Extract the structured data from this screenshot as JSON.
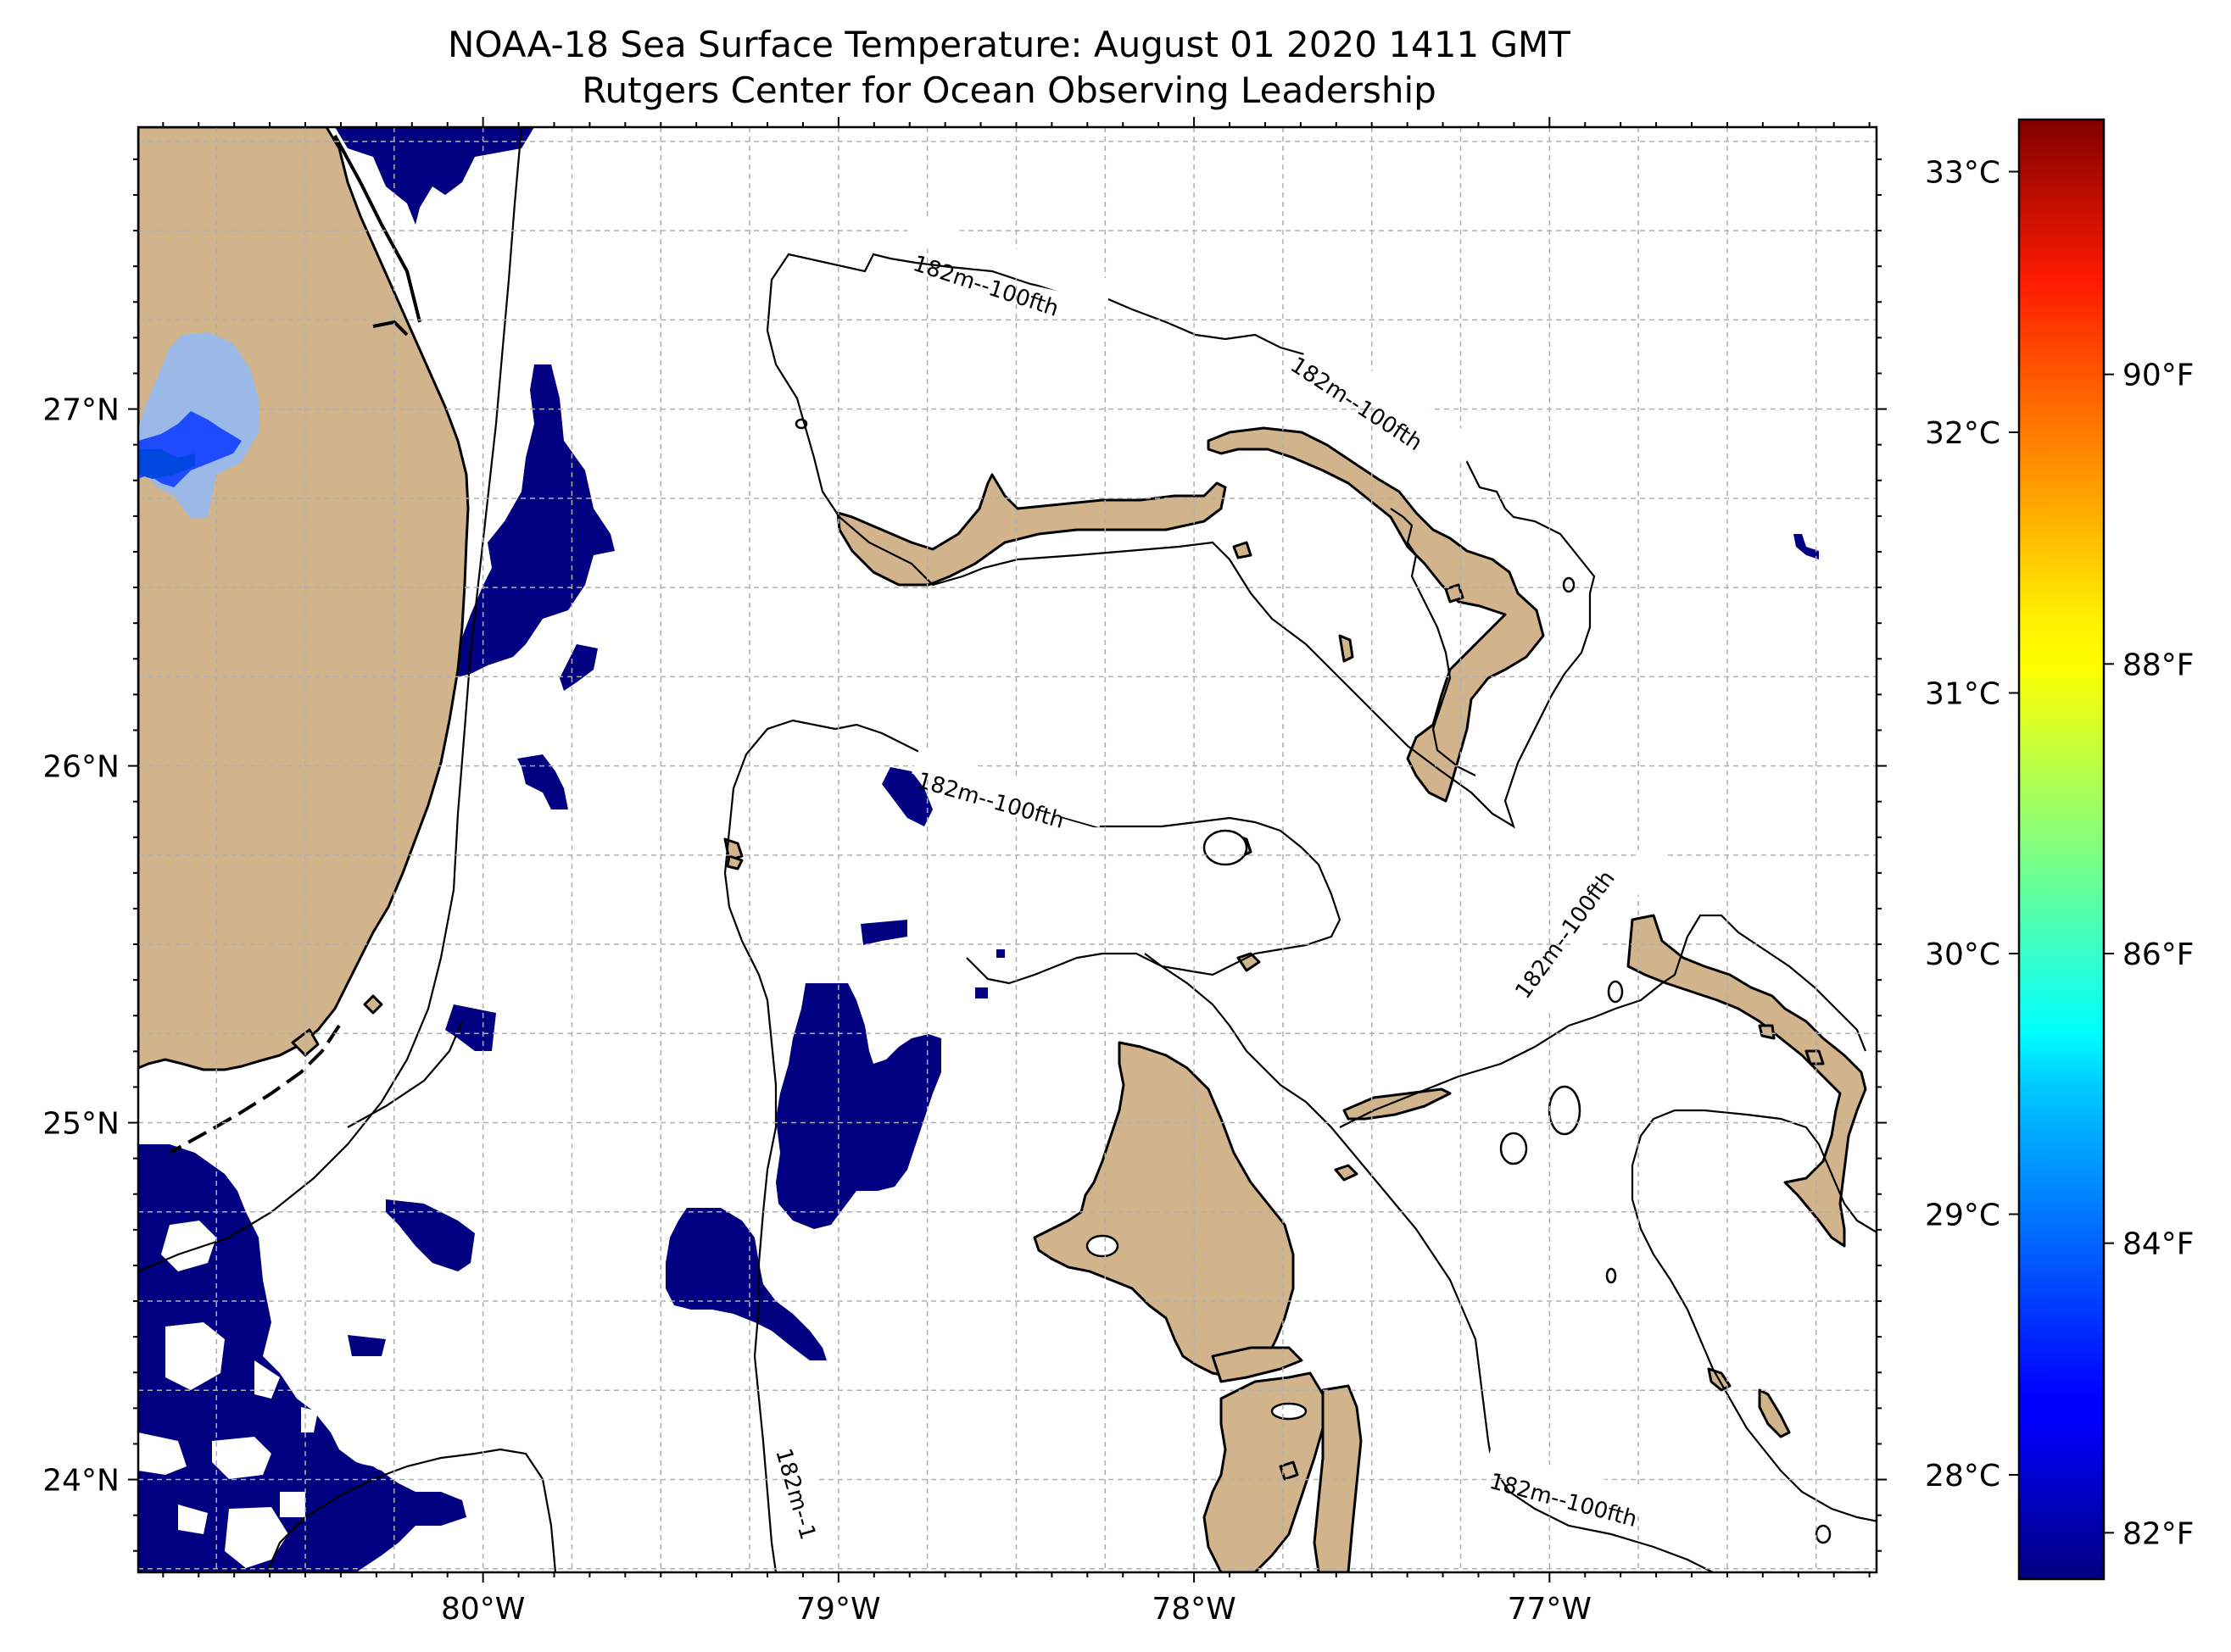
{
  "title": {
    "line1": "NOAA-18 Sea Surface Temperature: August 01 2020 1411 GMT",
    "line2": "Rutgers Center for Ocean Observing Leadership"
  },
  "map": {
    "lon_range": [
      -80.97,
      -76.08
    ],
    "lat_range": [
      23.74,
      27.79
    ],
    "lon_ticks": [
      {
        "value": -80,
        "label": "80°W"
      },
      {
        "value": -79,
        "label": "79°W"
      },
      {
        "value": -78,
        "label": "78°W"
      },
      {
        "value": -77,
        "label": "77°W"
      }
    ],
    "lat_ticks": [
      {
        "value": 27,
        "label": "27°N"
      },
      {
        "value": 26,
        "label": "26°N"
      },
      {
        "value": 25,
        "label": "25°N"
      },
      {
        "value": 24,
        "label": "24°N"
      }
    ],
    "gridlines": true,
    "land_color": "#d2b48c",
    "ocean_color": "#ffffff",
    "isobath_labels": [
      "182m--100fth",
      "182m--100fth",
      "182m--100fth",
      "182m--100fth",
      "182m--100fth",
      "182m--1"
    ]
  },
  "colorbar": {
    "colormap": "jet",
    "celsius_ticks": [
      {
        "value": 33,
        "label": "33°C"
      },
      {
        "value": 32,
        "label": "32°C"
      },
      {
        "value": 31,
        "label": "31°C"
      },
      {
        "value": 30,
        "label": "30°C"
      },
      {
        "value": 29,
        "label": "29°C"
      },
      {
        "value": 28,
        "label": "28°C"
      }
    ],
    "fahrenheit_ticks": [
      {
        "value": 90,
        "label": "90°F"
      },
      {
        "value": 88,
        "label": "88°F"
      },
      {
        "value": 86,
        "label": "86°F"
      },
      {
        "value": 84,
        "label": "84°F"
      },
      {
        "value": 82,
        "label": "82°F"
      }
    ],
    "range_c": [
      27.6,
      33.2
    ]
  }
}
